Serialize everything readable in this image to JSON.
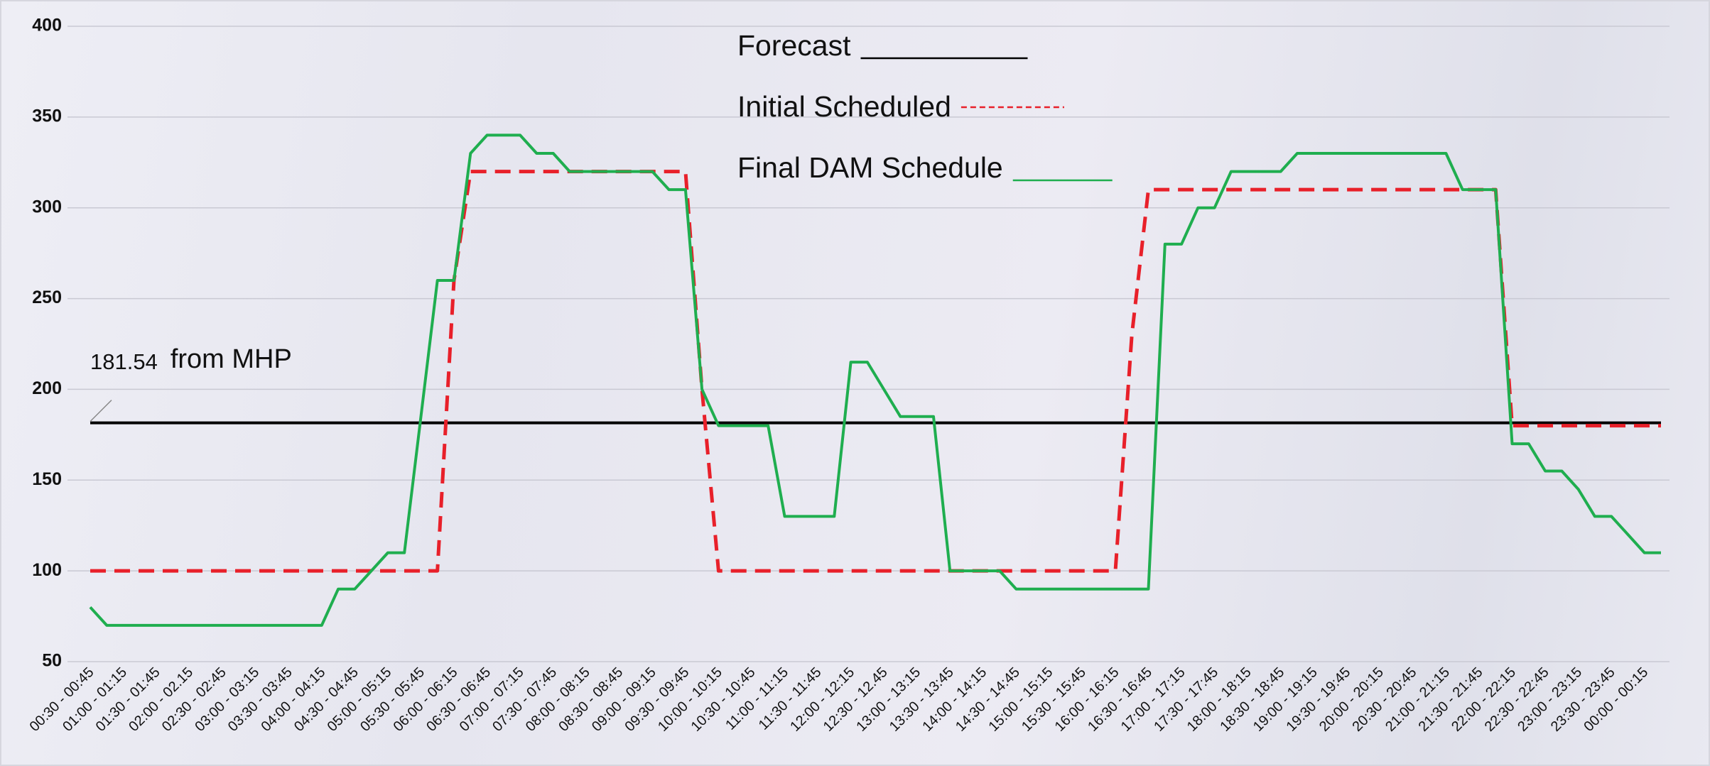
{
  "chart_data": {
    "type": "line",
    "categories": [
      "00:30 - 00:45",
      null,
      "01:00 - 01:15",
      null,
      "01:30 - 01:45",
      null,
      "02:00 - 02.15",
      null,
      "02:30 - 02:45",
      null,
      "03:00 - 03:15",
      null,
      "03:30 - 03:45",
      null,
      "04:00 - 04:15",
      null,
      "04:30 - 04:45",
      null,
      "05:00 - 05:15",
      null,
      "05:30 - 05:45",
      null,
      "06:00 - 06:15",
      null,
      "06:30 - 06:45",
      null,
      "07:00 - 07:15",
      null,
      "07:30 - 07:45",
      null,
      "08:00 - 08:15",
      null,
      "08:30 - 08:45",
      null,
      "09:00 - 09:15",
      null,
      "09:30 - 09:45",
      null,
      "10:00 - 10:15",
      null,
      "10:30 - 10:45",
      null,
      "11:00 - 11:15",
      null,
      "11:30 - 11:45",
      null,
      "12:00 - 12:15",
      null,
      "12:30 - 12.45",
      null,
      "13:00 - 13:15",
      null,
      "13:30 - 13:45",
      null,
      "14:00 - 14:15",
      null,
      "14:30 - 14:45",
      null,
      "15:00 - 15:15",
      null,
      "15:30 - 15:45",
      null,
      "16:00 - 16:15",
      null,
      "16:30 - 16:45",
      null,
      "17:00 - 17:15",
      null,
      "17:30 - 17:45",
      null,
      "18:00 - 18:15",
      null,
      "18:30 - 18:45",
      null,
      "19:00 - 19:15",
      null,
      "19:30 - 19:45",
      null,
      "20:00 - 20:15",
      null,
      "20:30 - 20:45",
      null,
      "21:00 - 21:15",
      null,
      "21:30 - 21:45",
      null,
      "22:00 - 22:15",
      null,
      "22:30 - 22:45",
      null,
      "23:00 - 23:15",
      null,
      "23:30 - 23:45",
      null,
      "00:00 - 00:15",
      null
    ],
    "series": [
      {
        "name": "Forecast",
        "color": "#000000",
        "style": "solid",
        "values": [
          181.54,
          181.54,
          181.54,
          181.54,
          181.54,
          181.54,
          181.54,
          181.54,
          181.54,
          181.54,
          181.54,
          181.54,
          181.54,
          181.54,
          181.54,
          181.54,
          181.54,
          181.54,
          181.54,
          181.54,
          181.54,
          181.54,
          181.54,
          181.54,
          181.54,
          181.54,
          181.54,
          181.54,
          181.54,
          181.54,
          181.54,
          181.54,
          181.54,
          181.54,
          181.54,
          181.54,
          181.54,
          181.54,
          181.54,
          181.54,
          181.54,
          181.54,
          181.54,
          181.54,
          181.54,
          181.54,
          181.54,
          181.54,
          181.54,
          181.54,
          181.54,
          181.54,
          181.54,
          181.54,
          181.54,
          181.54,
          181.54,
          181.54,
          181.54,
          181.54,
          181.54,
          181.54,
          181.54,
          181.54,
          181.54,
          181.54,
          181.54,
          181.54,
          181.54,
          181.54,
          181.54,
          181.54,
          181.54,
          181.54,
          181.54,
          181.54,
          181.54,
          181.54,
          181.54,
          181.54,
          181.54,
          181.54,
          181.54,
          181.54,
          181.54,
          181.54,
          181.54,
          181.54,
          181.54,
          181.54,
          181.54,
          181.54,
          181.54,
          181.54,
          181.54,
          181.54
        ]
      },
      {
        "name": "Initial Scheduled",
        "color": "#e8202a",
        "style": "dashed",
        "values": [
          100,
          100,
          100,
          100,
          100,
          100,
          100,
          100,
          100,
          100,
          100,
          100,
          100,
          100,
          100,
          100,
          100,
          100,
          100,
          100,
          100,
          100,
          260,
          320,
          320,
          320,
          320,
          320,
          320,
          320,
          320,
          320,
          320,
          320,
          320,
          320,
          320,
          200,
          100,
          100,
          100,
          100,
          100,
          100,
          100,
          100,
          100,
          100,
          100,
          100,
          100,
          100,
          100,
          100,
          100,
          100,
          100,
          100,
          100,
          100,
          100,
          100,
          100,
          230,
          310,
          310,
          310,
          310,
          310,
          310,
          310,
          310,
          310,
          310,
          310,
          310,
          310,
          310,
          310,
          310,
          310,
          310,
          310,
          310,
          310,
          310,
          180,
          180,
          180,
          180,
          180,
          180,
          180,
          180,
          180,
          180
        ]
      },
      {
        "name": "Final DAM Schedule",
        "color": "#1fae4f",
        "style": "solid",
        "values": [
          80,
          70,
          70,
          70,
          70,
          70,
          70,
          70,
          70,
          70,
          70,
          70,
          70,
          70,
          70,
          90,
          90,
          100,
          110,
          110,
          185,
          260,
          260,
          330,
          340,
          340,
          340,
          330,
          330,
          320,
          320,
          320,
          320,
          320,
          320,
          310,
          310,
          200,
          180,
          180,
          180,
          180,
          130,
          130,
          130,
          130,
          215,
          215,
          200,
          185,
          185,
          185,
          100,
          100,
          100,
          100,
          90,
          90,
          90,
          90,
          90,
          90,
          90,
          90,
          90,
          280,
          280,
          300,
          300,
          320,
          320,
          320,
          320,
          330,
          330,
          330,
          330,
          330,
          330,
          330,
          330,
          330,
          330,
          310,
          310,
          310,
          170,
          170,
          155,
          155,
          145,
          130,
          130,
          120,
          110,
          110
        ]
      }
    ],
    "annotation": "from MHP",
    "ylim": [
      50,
      400
    ],
    "yticks": [
      50,
      100,
      150,
      200,
      250,
      300,
      350,
      400
    ],
    "grid": true,
    "legend": "top"
  }
}
